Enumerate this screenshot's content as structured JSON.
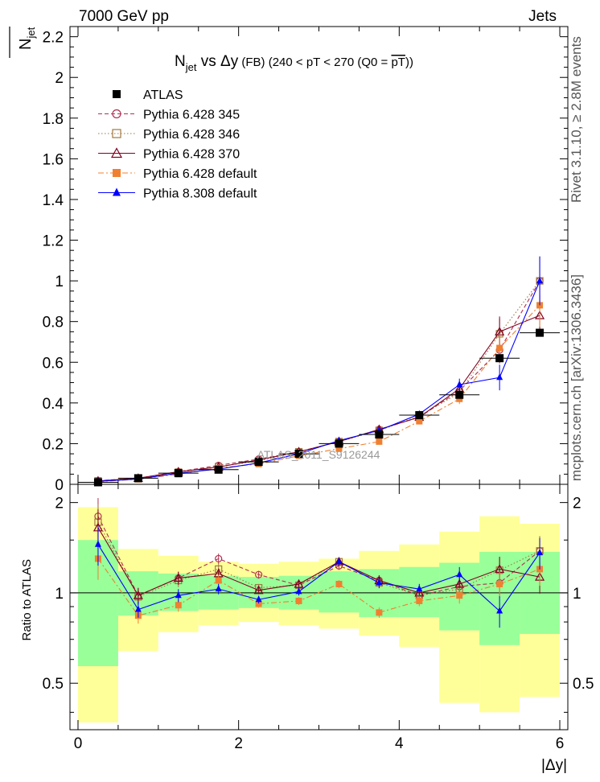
{
  "header": {
    "left": "7000 GeV pp",
    "right": "Jets",
    "title_main": "N",
    "title_sub": "jet",
    "title_vs": " vs Δy",
    "title_rest": " (FB) (240 < pT < 270 (Q0 = ",
    "title_pt": "pT",
    "title_close": "))"
  },
  "side": {
    "rivet": "Rivet 3.1.10, ≥ 2.8M events",
    "mcplots": "mcplots.cern.ch [arXiv:1306.3436]"
  },
  "watermark": "ATLAS_2011_S9126244",
  "ylabel_top": "N",
  "ylabel_top_sub": "jet",
  "ylabel_bottom": "Ratio to ATLAS",
  "xlabel": "|Δy|",
  "legend": [
    "ATLAS",
    "Pythia 6.428 345",
    "Pythia 6.428 346",
    "Pythia 6.428 370",
    "Pythia 6.428 default",
    "Pythia 8.308 default"
  ],
  "chart_data": {
    "type": "line",
    "x": [
      0.25,
      0.75,
      1.25,
      1.75,
      2.25,
      2.75,
      3.25,
      3.75,
      4.25,
      4.75,
      5.25,
      5.75
    ],
    "x_edges": [
      0,
      0.5,
      1.0,
      1.5,
      2.0,
      2.5,
      3.0,
      3.5,
      4.0,
      4.5,
      5.0,
      5.5,
      6.0
    ],
    "xlim": [
      -0.1,
      6.1
    ],
    "xticks": [
      0,
      2,
      4,
      6
    ],
    "main": {
      "ylim": [
        0,
        2.25
      ],
      "yticks": [
        0,
        0.2,
        0.4,
        0.6,
        0.8,
        1,
        1.2,
        1.4,
        1.6,
        1.8,
        2,
        2.2
      ],
      "ytick_labels": [
        "0",
        "0.2",
        "0.4",
        "0.6",
        "0.8",
        "1",
        "1.2",
        "1.4",
        "1.6",
        "1.8",
        "2",
        "2.2"
      ]
    },
    "ratio": {
      "ylim": [
        0.35,
        2.3
      ],
      "log": true,
      "yticks": [
        0.5,
        1,
        2
      ],
      "ytick_labels": [
        "0.5",
        "1",
        "2"
      ],
      "band_inner_low": [
        0.57,
        0.84,
        0.87,
        0.88,
        0.89,
        0.88,
        0.86,
        0.83,
        0.83,
        0.75,
        0.67,
        0.73
      ],
      "band_inner_high": [
        1.5,
        1.18,
        1.16,
        1.14,
        1.13,
        1.14,
        1.18,
        1.2,
        1.22,
        1.26,
        1.37,
        1.37
      ],
      "band_outer_low": [
        0.37,
        0.64,
        0.74,
        0.78,
        0.8,
        0.78,
        0.76,
        0.72,
        0.66,
        0.43,
        0.4,
        0.45
      ],
      "band_outer_high": [
        1.93,
        1.4,
        1.33,
        1.27,
        1.25,
        1.27,
        1.3,
        1.38,
        1.45,
        1.6,
        1.8,
        1.7
      ]
    },
    "series": [
      {
        "name": "ATLAS",
        "color": "#000000",
        "marker": "square-filled",
        "line": "none",
        "values": [
          0.01,
          0.03,
          0.055,
          0.072,
          0.11,
          0.15,
          0.2,
          0.245,
          0.34,
          0.44,
          0.62,
          0.745
        ],
        "ratio": [
          1,
          1,
          1,
          1,
          1,
          1,
          1,
          1,
          1,
          1,
          1,
          1
        ]
      },
      {
        "name": "Pythia 6.428 345",
        "color": "#b03050",
        "marker": "circle-open",
        "line": "dashed",
        "values": [
          0.018,
          0.03,
          0.062,
          0.093,
          0.124,
          0.16,
          0.21,
          0.27,
          0.33,
          0.46,
          0.66,
          1.0
        ],
        "ratio": [
          1.8,
          0.98,
          1.12,
          1.3,
          1.15,
          1.06,
          1.23,
          1.1,
          0.98,
          1.05,
          1.08,
          1.38
        ],
        "err": [
          0.15,
          0.06,
          0.05,
          0.04,
          0.03,
          0.03,
          0.03,
          0.04,
          0.04,
          0.06,
          0.1,
          0.12
        ]
      },
      {
        "name": "Pythia 6.428 346",
        "color": "#a07840",
        "marker": "square-open",
        "line": "dotted",
        "values": [
          0.017,
          0.03,
          0.06,
          0.087,
          0.115,
          0.16,
          0.21,
          0.265,
          0.335,
          0.45,
          0.74,
          1.0
        ],
        "ratio": [
          1.72,
          0.97,
          1.1,
          1.2,
          1.04,
          1.06,
          1.27,
          1.08,
          0.98,
          1.03,
          1.19,
          1.38
        ],
        "err": [
          0.15,
          0.06,
          0.05,
          0.04,
          0.03,
          0.03,
          0.03,
          0.04,
          0.04,
          0.06,
          0.1,
          0.12
        ]
      },
      {
        "name": "Pythia 6.428 370",
        "color": "#800020",
        "marker": "triangle-open",
        "line": "solid",
        "values": [
          0.017,
          0.03,
          0.062,
          0.085,
          0.12,
          0.16,
          0.21,
          0.27,
          0.33,
          0.47,
          0.75,
          0.83
        ],
        "ratio": [
          1.65,
          0.98,
          1.12,
          1.16,
          1.02,
          1.07,
          1.27,
          1.1,
          1.0,
          1.07,
          1.2,
          1.13
        ],
        "err": [
          0.15,
          0.06,
          0.05,
          0.04,
          0.03,
          0.03,
          0.03,
          0.04,
          0.04,
          0.06,
          0.1,
          0.12
        ]
      },
      {
        "name": "Pythia 6.428 default",
        "color": "#f08030",
        "marker": "square-filled",
        "line": "dashdot",
        "values": [
          0.013,
          0.025,
          0.05,
          0.08,
          0.1,
          0.14,
          0.175,
          0.21,
          0.31,
          0.42,
          0.67,
          0.88
        ],
        "ratio": [
          1.3,
          0.84,
          0.91,
          1.1,
          0.92,
          0.94,
          1.07,
          0.86,
          0.94,
          0.98,
          1.07,
          1.2
        ],
        "err": [
          0.15,
          0.06,
          0.05,
          0.04,
          0.03,
          0.03,
          0.03,
          0.04,
          0.04,
          0.06,
          0.1,
          0.12
        ]
      },
      {
        "name": "Pythia 8.308 default",
        "color": "#0000ff",
        "marker": "triangle-filled",
        "line": "solid",
        "values": [
          0.015,
          0.026,
          0.055,
          0.075,
          0.105,
          0.15,
          0.215,
          0.265,
          0.345,
          0.49,
          0.525,
          1.0
        ],
        "ratio": [
          1.45,
          0.88,
          0.98,
          1.03,
          0.95,
          1.01,
          1.27,
          1.08,
          1.03,
          1.15,
          0.87,
          1.36
        ],
        "err": [
          0.15,
          0.06,
          0.05,
          0.04,
          0.03,
          0.03,
          0.03,
          0.04,
          0.04,
          0.06,
          0.12,
          0.12
        ]
      }
    ]
  }
}
